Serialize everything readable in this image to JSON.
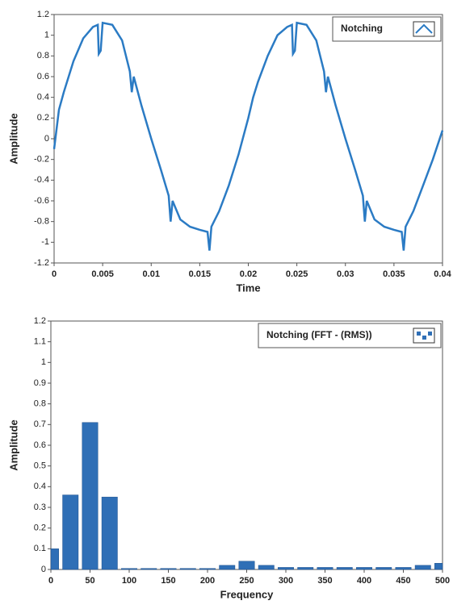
{
  "chart_data": [
    {
      "type": "line",
      "x_label": "Time",
      "y_label": "Amplitude",
      "xlim": [
        0,
        0.04
      ],
      "ylim": [
        -1.2,
        1.2
      ],
      "xticks": [
        0,
        0.005,
        0.01,
        0.015,
        0.02,
        0.025,
        0.03,
        0.035,
        0.04
      ],
      "yticks": [
        1.2,
        1,
        0.8,
        0.6,
        0.4,
        0.2,
        0,
        -0.2,
        -0.4,
        -0.6,
        -0.8,
        -1,
        -1.2
      ],
      "x": [
        0,
        0.0005,
        0.001,
        0.002,
        0.003,
        0.004,
        0.0045,
        0.0046,
        0.0048,
        0.005,
        0.006,
        0.007,
        0.0078,
        0.008,
        0.0082,
        0.009,
        0.01,
        0.011,
        0.0118,
        0.012,
        0.0122,
        0.013,
        0.014,
        0.015,
        0.0158,
        0.016,
        0.0162,
        0.017,
        0.018,
        0.019,
        0.02,
        0.0205,
        0.021,
        0.022,
        0.023,
        0.024,
        0.0245,
        0.0246,
        0.0248,
        0.025,
        0.026,
        0.027,
        0.0278,
        0.028,
        0.0282,
        0.029,
        0.03,
        0.031,
        0.0318,
        0.032,
        0.0322,
        0.033,
        0.034,
        0.035,
        0.0358,
        0.036,
        0.0362,
        0.037,
        0.038,
        0.039,
        0.04
      ],
      "series": [
        {
          "name": "Notching",
          "color": "#2b7bc4",
          "values": [
            -0.1,
            0.28,
            0.45,
            0.75,
            0.97,
            1.08,
            1.1,
            0.82,
            0.85,
            1.12,
            1.1,
            0.95,
            0.65,
            0.45,
            0.6,
            0.32,
            0.0,
            -0.3,
            -0.55,
            -0.8,
            -0.6,
            -0.78,
            -0.85,
            -0.88,
            -0.9,
            -1.08,
            -0.85,
            -0.7,
            -0.45,
            -0.15,
            0.2,
            0.4,
            0.55,
            0.8,
            1.0,
            1.08,
            1.1,
            0.82,
            0.85,
            1.12,
            1.1,
            0.95,
            0.65,
            0.45,
            0.6,
            0.32,
            0.0,
            -0.3,
            -0.55,
            -0.8,
            -0.6,
            -0.78,
            -0.85,
            -0.88,
            -0.9,
            -1.08,
            -0.85,
            -0.7,
            -0.45,
            -0.2,
            0.08
          ]
        }
      ]
    },
    {
      "type": "bar",
      "x_label": "Frequency",
      "y_label": "Amplitude",
      "xlim": [
        0,
        500
      ],
      "ylim": [
        0,
        1.2
      ],
      "xticks": [
        0,
        50,
        100,
        150,
        200,
        250,
        300,
        350,
        400,
        450,
        500
      ],
      "yticks": [
        1.2,
        1.1,
        1,
        0.9,
        0.8,
        0.7,
        0.6,
        0.5,
        0.4,
        0.3,
        0.2,
        0.1,
        0
      ],
      "x": [
        0,
        25,
        50,
        75,
        100,
        125,
        150,
        175,
        200,
        225,
        250,
        275,
        300,
        325,
        350,
        375,
        400,
        425,
        450,
        475,
        500
      ],
      "series": [
        {
          "name": "Notching (FFT - (RMS))",
          "color": "#2f6fb6",
          "values": [
            0.1,
            0.36,
            0.71,
            0.35,
            0.005,
            0.005,
            0.005,
            0.005,
            0.005,
            0.02,
            0.04,
            0.02,
            0.01,
            0.01,
            0.01,
            0.01,
            0.01,
            0.01,
            0.01,
            0.02,
            0.03
          ]
        }
      ]
    }
  ]
}
